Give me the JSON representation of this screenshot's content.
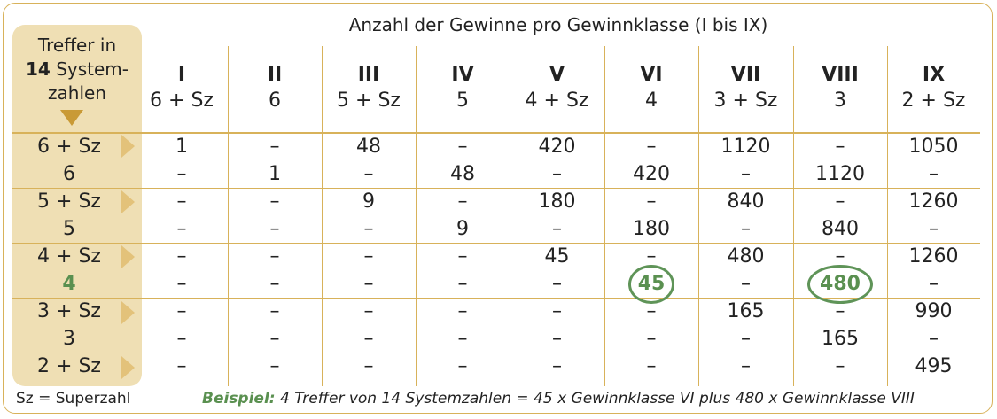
{
  "title": "Anzahl der Gewinne pro Gewinnklasse (I bis IX)",
  "side_header": {
    "line1": "Treffer in",
    "line2_bold": "14",
    "line2_rest": " System-",
    "line3": "zahlen"
  },
  "columns": [
    {
      "roman": "I",
      "sub": "6 + Sz"
    },
    {
      "roman": "II",
      "sub": "6"
    },
    {
      "roman": "III",
      "sub": "5 + Sz"
    },
    {
      "roman": "IV",
      "sub": "5"
    },
    {
      "roman": "V",
      "sub": "4 + Sz"
    },
    {
      "roman": "VI",
      "sub": "4"
    },
    {
      "roman": "VII",
      "sub": "3 + Sz"
    },
    {
      "roman": "VIII",
      "sub": "3"
    },
    {
      "roman": "IX",
      "sub": "2 + Sz"
    }
  ],
  "rows": [
    {
      "label": "6 + Sz",
      "cells": [
        "1",
        "–",
        "48",
        "–",
        "420",
        "–",
        "1120",
        "–",
        "1050"
      ]
    },
    {
      "label": "6",
      "cells": [
        "–",
        "1",
        "–",
        "48",
        "–",
        "420",
        "–",
        "1120",
        "–"
      ]
    },
    {
      "label": "5 + Sz",
      "cells": [
        "–",
        "–",
        "9",
        "–",
        "180",
        "–",
        "840",
        "–",
        "1260"
      ]
    },
    {
      "label": "5",
      "cells": [
        "–",
        "–",
        "–",
        "9",
        "–",
        "180",
        "–",
        "840",
        "–"
      ]
    },
    {
      "label": "4 + Sz",
      "cells": [
        "–",
        "–",
        "–",
        "–",
        "45",
        "–",
        "480",
        "–",
        "1260"
      ]
    },
    {
      "label": "4",
      "highlight": true,
      "cells": [
        "–",
        "–",
        "–",
        "–",
        "–",
        "45",
        "–",
        "480",
        "–"
      ]
    },
    {
      "label": "3 + Sz",
      "cells": [
        "–",
        "–",
        "–",
        "–",
        "–",
        "–",
        "165",
        "–",
        "990"
      ]
    },
    {
      "label": "3",
      "cells": [
        "–",
        "–",
        "–",
        "–",
        "–",
        "–",
        "–",
        "165",
        "–"
      ]
    },
    {
      "label": "2 + Sz",
      "cells": [
        "–",
        "–",
        "–",
        "–",
        "–",
        "–",
        "–",
        "–",
        "495"
      ]
    }
  ],
  "highlighted_cells": [
    {
      "row": 5,
      "col": 5
    },
    {
      "row": 5,
      "col": 7
    }
  ],
  "legend": "Sz = Superzahl",
  "example": {
    "label": "Beispiel:",
    "text": " 4 Treffer von 14 Systemzahlen = 45 x Gewinnklasse VI plus 480 x Gewinnklasse VIII"
  },
  "colors": {
    "gold_line": "#d8b25a",
    "panel": "#efdfb4",
    "arrow": "#e3c27a",
    "head_arrow": "#c99a36",
    "green": "#5a9050"
  }
}
